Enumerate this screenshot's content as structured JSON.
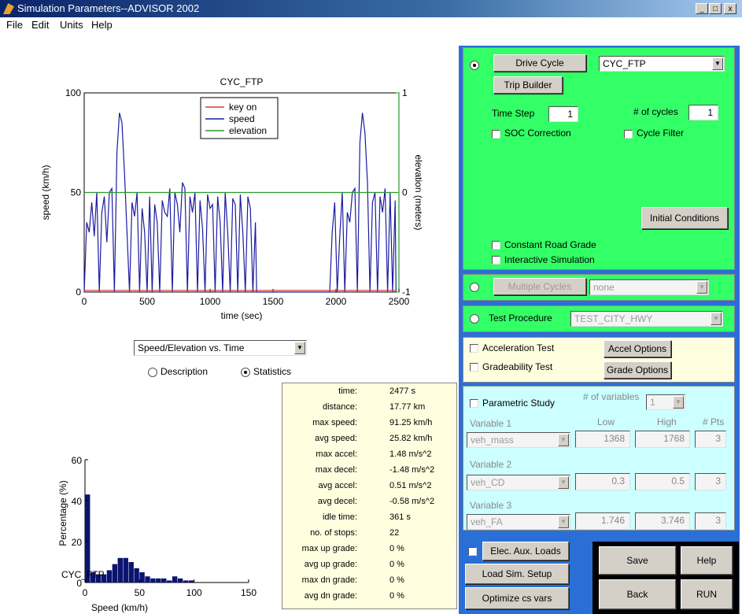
{
  "window": {
    "title": "Simulation Parameters--ADVISOR 2002",
    "min": "_",
    "max": "□",
    "close": "x"
  },
  "menu": [
    "File",
    "Edit",
    "Units",
    "Help"
  ],
  "main_chart_data": {
    "type": "line",
    "title": "CYC_FTP",
    "xlabel": "time (sec)",
    "ylabel": "speed (km/h)",
    "y2label": "elevation (meters)",
    "xlim": [
      0,
      2500
    ],
    "ylim": [
      0,
      100
    ],
    "y2lim": [
      -1,
      1
    ],
    "xticks": [
      "0",
      "500",
      "1000",
      "1500",
      "2000",
      "2500"
    ],
    "yticks": [
      "0",
      "50",
      "100"
    ],
    "y2ticks": [
      "-1",
      "0",
      "1"
    ],
    "legend": [
      "key on",
      "speed",
      "elevation"
    ],
    "legend_position": "top-center",
    "colors": {
      "key_on": "#d04040",
      "speed": "#1c1ca0",
      "elevation": "#2a9a2a",
      "axis_right": "#2a9a2a",
      "axis_left": "#2020b0"
    },
    "series": [
      {
        "name": "speed",
        "x": [
          0,
          20,
          40,
          60,
          80,
          100,
          120,
          140,
          160,
          180,
          200,
          220,
          240,
          260,
          280,
          300,
          320,
          340,
          360,
          380,
          400,
          420,
          440,
          460,
          480,
          500,
          520,
          540,
          560,
          580,
          600,
          620,
          640,
          660,
          680,
          700,
          720,
          740,
          760,
          780,
          800,
          820,
          840,
          860,
          880,
          900,
          920,
          940,
          960,
          980,
          1000,
          1020,
          1040,
          1060,
          1080,
          1100,
          1120,
          1140,
          1160,
          1180,
          1200,
          1220,
          1240,
          1260,
          1280,
          1300,
          1320,
          1340,
          1360,
          1370,
          1400,
          1500,
          1600,
          1700,
          1800,
          1900,
          1950,
          1970,
          1990,
          2010,
          2030,
          2050,
          2070,
          2090,
          2110,
          2130,
          2150,
          2170,
          2190,
          2210,
          2230,
          2250,
          2270,
          2290,
          2310,
          2330,
          2350,
          2370,
          2390,
          2410,
          2430,
          2450,
          2470,
          2477
        ],
        "values": [
          0,
          35,
          30,
          45,
          28,
          50,
          0,
          40,
          48,
          25,
          50,
          52,
          0,
          70,
          90,
          85,
          60,
          30,
          0,
          45,
          38,
          50,
          0,
          42,
          30,
          0,
          48,
          0,
          44,
          35,
          0,
          46,
          40,
          38,
          52,
          0,
          50,
          44,
          30,
          55,
          52,
          0,
          48,
          40,
          50,
          0,
          46,
          32,
          0,
          49,
          42,
          44,
          0,
          48,
          35,
          0,
          50,
          30,
          0,
          47,
          44,
          0,
          49,
          30,
          0,
          48,
          42,
          0,
          35,
          0,
          0,
          0,
          0,
          0,
          0,
          0,
          0,
          30,
          45,
          0,
          28,
          50,
          0,
          40,
          35,
          50,
          52,
          0,
          75,
          90,
          80,
          55,
          0,
          45,
          50,
          0,
          48,
          40,
          52,
          0,
          50,
          0,
          46,
          0
        ]
      },
      {
        "name": "key on",
        "x": [
          0,
          1370,
          1950,
          2477
        ],
        "values": [
          0.8,
          0.8,
          0.8,
          0.8
        ]
      },
      {
        "name": "elevation",
        "x": [
          0,
          2477
        ],
        "values": [
          0,
          0
        ]
      }
    ]
  },
  "plot_select": {
    "value": "Speed/Elevation vs. Time"
  },
  "view_radio": {
    "description": "Description",
    "statistics": "Statistics",
    "selected": "statistics"
  },
  "hist_chart_data": {
    "type": "bar",
    "xlabel": "Speed (km/h)",
    "ylabel": "Percentage (%)",
    "overlay_text": "CYC_FTP",
    "xlim": [
      0,
      150
    ],
    "ylim": [
      0,
      60
    ],
    "xticks": [
      "0",
      "50",
      "100",
      "150"
    ],
    "yticks": [
      "0",
      "20",
      "40",
      "60"
    ],
    "bin_width": 5,
    "bin_starts": [
      0,
      5,
      10,
      15,
      20,
      25,
      30,
      35,
      40,
      45,
      50,
      55,
      60,
      65,
      70,
      75,
      80,
      85,
      90,
      95
    ],
    "values": [
      43,
      5,
      4,
      4,
      6,
      9,
      12,
      12,
      10,
      7,
      5,
      3,
      2,
      2,
      2,
      1,
      3,
      2,
      1,
      1
    ],
    "color": "#0a1470"
  },
  "stats": [
    {
      "k": "time:",
      "v": "2477 s"
    },
    {
      "k": "distance:",
      "v": "17.77 km"
    },
    {
      "k": "max speed:",
      "v": "91.25 km/h"
    },
    {
      "k": "avg speed:",
      "v": "25.82 km/h"
    },
    {
      "k": "max accel:",
      "v": "1.48 m/s^2"
    },
    {
      "k": "max decel:",
      "v": "-1.48 m/s^2"
    },
    {
      "k": "avg accel:",
      "v": "0.51 m/s^2"
    },
    {
      "k": "avg decel:",
      "v": "-0.58 m/s^2"
    },
    {
      "k": "idle time:",
      "v": "361 s"
    },
    {
      "k": "no. of stops:",
      "v": "22"
    },
    {
      "k": "max up grade:",
      "v": "0 %"
    },
    {
      "k": "avg up grade:",
      "v": "0 %"
    },
    {
      "k": "max dn grade:",
      "v": "0 %"
    },
    {
      "k": "avg dn grade:",
      "v": "0 %"
    }
  ],
  "drive": {
    "drive_cycle_btn": "Drive Cycle",
    "cycle_select": "CYC_FTP",
    "trip_builder_btn": "Trip Builder",
    "time_step_label": "Time Step",
    "time_step": "1",
    "cycles_label": "# of cycles",
    "cycles": "1",
    "soc_correction": "SOC Correction",
    "cycle_filter": "Cycle Filter",
    "initial_conditions_btn": "Initial Conditions",
    "constant_road_grade": "Constant Road Grade",
    "interactive_simulation": "Interactive Simulation"
  },
  "multiple": {
    "btn": "Multiple Cycles",
    "select": "none"
  },
  "test": {
    "label": "Test Procedure",
    "select": "TEST_CITY_HWY"
  },
  "accel": {
    "accel_test": "Acceleration Test",
    "accel_btn": "Accel Options",
    "grade_test": "Gradeability Test",
    "grade_btn": "Grade Options"
  },
  "parametric": {
    "label": "Parametric Study",
    "nvars_label": "# of variables",
    "nvars": "1",
    "col_low": "Low",
    "col_high": "High",
    "col_pts": "# Pts",
    "vars": [
      {
        "label": "Variable 1",
        "name": "veh_mass",
        "low": "1368",
        "high": "1768",
        "pts": "3"
      },
      {
        "label": "Variable 2",
        "name": "veh_CD",
        "low": "0.3",
        "high": "0.5",
        "pts": "3"
      },
      {
        "label": "Variable 3",
        "name": "veh_FA",
        "low": "1.746",
        "high": "3.746",
        "pts": "3"
      }
    ]
  },
  "bottom": {
    "elec_aux": "Elec. Aux. Loads",
    "load_setup": "Load Sim. Setup",
    "optimize": "Optimize cs vars",
    "save": "Save",
    "help": "Help",
    "back": "Back",
    "run": "RUN"
  },
  "colors": {
    "drive_panel": "#33ff66",
    "accel_panel": "#ffffe0",
    "param_panel": "#ccffff",
    "right_bg": "#2a6fd6"
  }
}
